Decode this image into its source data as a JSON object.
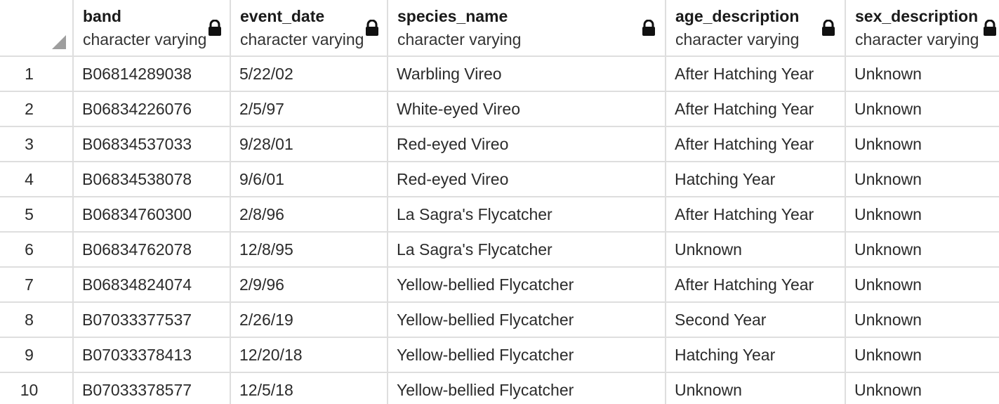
{
  "columns": [
    {
      "name": "band",
      "type": "character varying"
    },
    {
      "name": "event_date",
      "type": "character varying"
    },
    {
      "name": "species_name",
      "type": "character varying"
    },
    {
      "name": "age_description",
      "type": "character varying"
    },
    {
      "name": "sex_description",
      "type": "character varying"
    }
  ],
  "rows": [
    {
      "num": "1",
      "band": "B06814289038",
      "event_date": "5/22/02",
      "species_name": "Warbling Vireo",
      "age_description": "After Hatching Year",
      "sex_description": "Unknown"
    },
    {
      "num": "2",
      "band": "B06834226076",
      "event_date": "2/5/97",
      "species_name": "White-eyed Vireo",
      "age_description": "After Hatching Year",
      "sex_description": "Unknown"
    },
    {
      "num": "3",
      "band": "B06834537033",
      "event_date": "9/28/01",
      "species_name": "Red-eyed Vireo",
      "age_description": "After Hatching Year",
      "sex_description": "Unknown"
    },
    {
      "num": "4",
      "band": "B06834538078",
      "event_date": "9/6/01",
      "species_name": "Red-eyed Vireo",
      "age_description": "Hatching Year",
      "sex_description": "Unknown"
    },
    {
      "num": "5",
      "band": "B06834760300",
      "event_date": "2/8/96",
      "species_name": "La Sagra's Flycatcher",
      "age_description": "After Hatching Year",
      "sex_description": "Unknown"
    },
    {
      "num": "6",
      "band": "B06834762078",
      "event_date": "12/8/95",
      "species_name": "La Sagra's Flycatcher",
      "age_description": "Unknown",
      "sex_description": "Unknown"
    },
    {
      "num": "7",
      "band": "B06834824074",
      "event_date": "2/9/96",
      "species_name": "Yellow-bellied Flycatcher",
      "age_description": "After Hatching Year",
      "sex_description": "Unknown"
    },
    {
      "num": "8",
      "band": "B07033377537",
      "event_date": "2/26/19",
      "species_name": "Yellow-bellied Flycatcher",
      "age_description": "Second Year",
      "sex_description": "Unknown"
    },
    {
      "num": "9",
      "band": "B07033378413",
      "event_date": "12/20/18",
      "species_name": "Yellow-bellied Flycatcher",
      "age_description": "Hatching Year",
      "sex_description": "Unknown"
    },
    {
      "num": "10",
      "band": "B07033378577",
      "event_date": "12/5/18",
      "species_name": "Yellow-bellied Flycatcher",
      "age_description": "Unknown",
      "sex_description": "Unknown"
    }
  ]
}
